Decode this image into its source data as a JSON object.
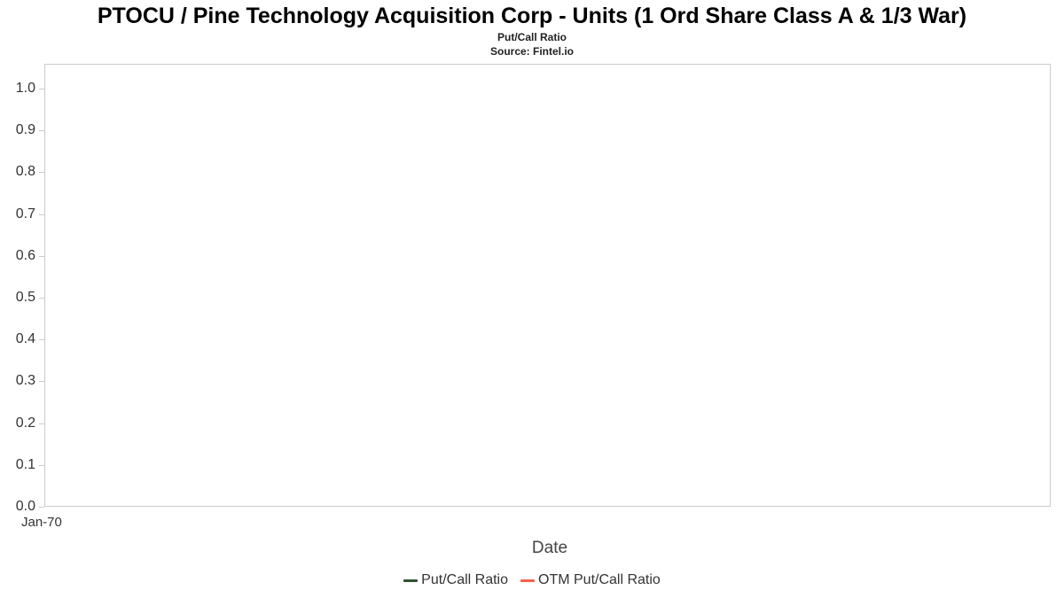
{
  "header": {
    "title": "PTOCU / Pine Technology Acquisition Corp - Units (1 Ord Share Class A & 1/3 War)",
    "subtitle": "Put/Call Ratio",
    "source": "Source: Fintel.io"
  },
  "chart_data": {
    "type": "line",
    "title": "PTOCU / Pine Technology Acquisition Corp - Units (1 Ord Share Class A & 1/3 War)",
    "subtitle": "Put/Call Ratio",
    "source": "Source: Fintel.io",
    "xlabel": "Date",
    "ylabel": "",
    "ylim": [
      0.0,
      1.0
    ],
    "yticks": [
      "1.0",
      "0.9",
      "0.8",
      "0.7",
      "0.6",
      "0.5",
      "0.4",
      "0.3",
      "0.2",
      "0.1",
      "0.0"
    ],
    "xtick_labels": [
      "Jan-70"
    ],
    "grid": false,
    "legend_position": "bottom",
    "plot_border_color": "#cccccc",
    "series": [
      {
        "name": "Put/Call Ratio",
        "color": "#2f5233",
        "x": [],
        "values": []
      },
      {
        "name": "OTM Put/Call Ratio",
        "color": "#f4614c",
        "x": [],
        "values": []
      }
    ]
  }
}
